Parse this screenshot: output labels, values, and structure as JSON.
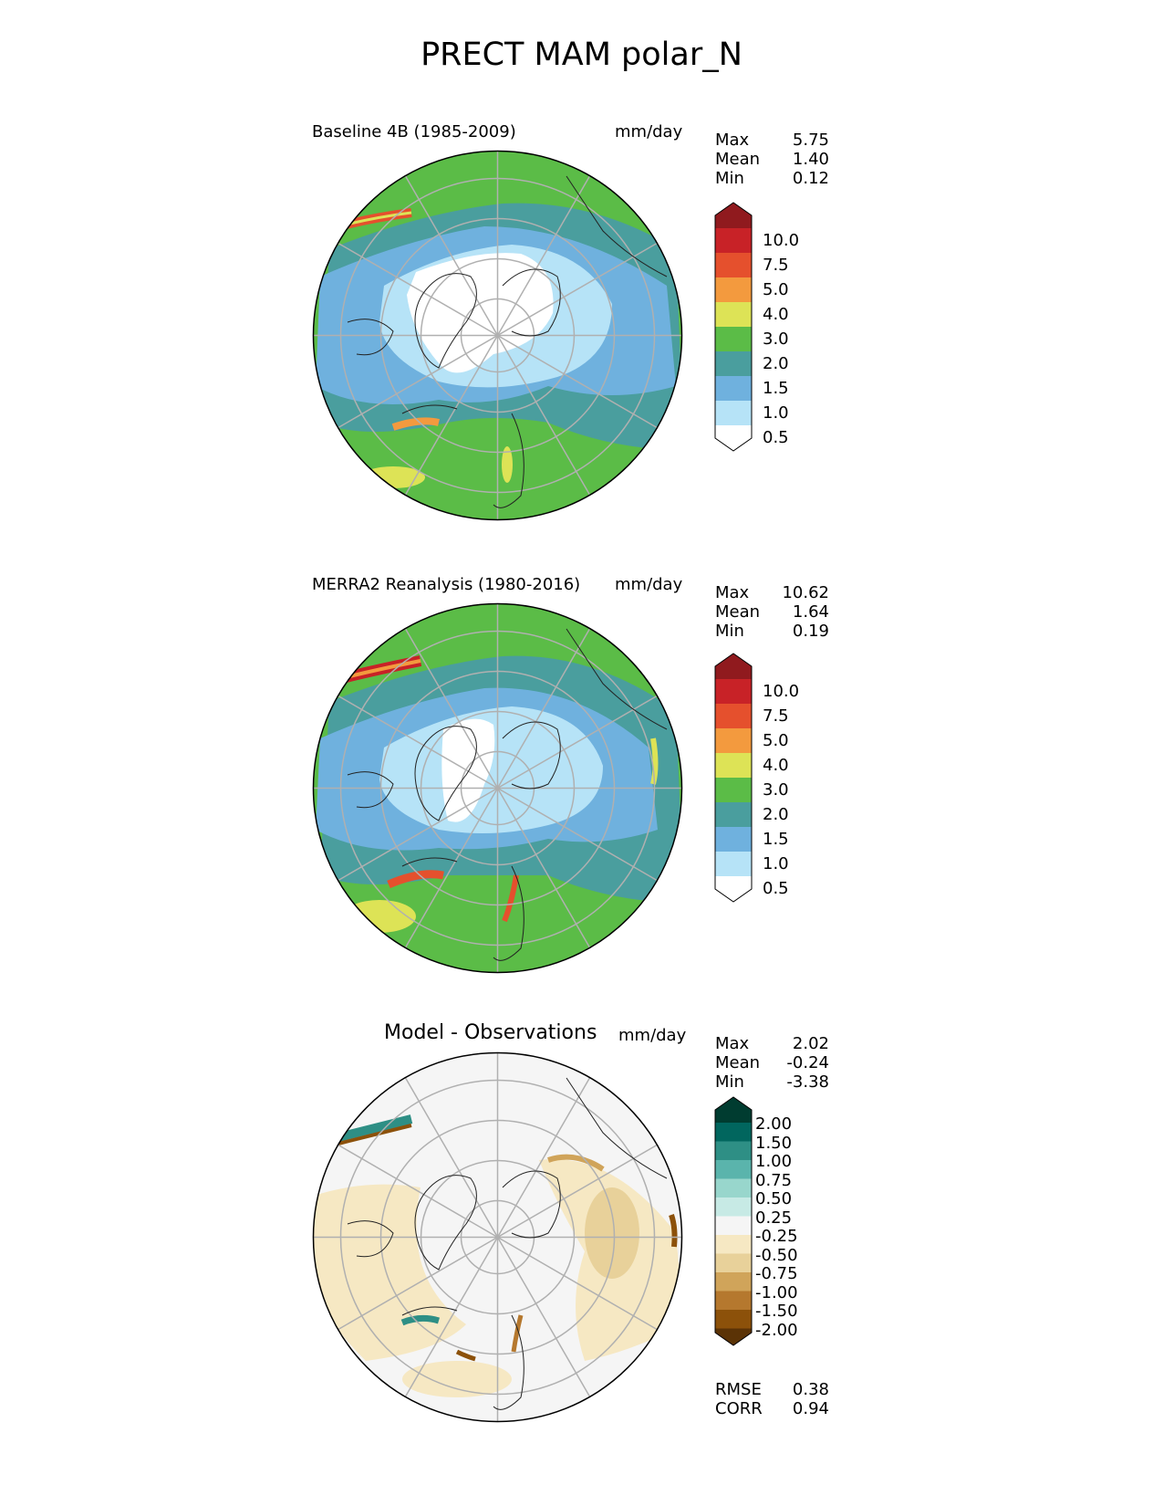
{
  "title": "PRECT MAM polar_N",
  "panels": [
    {
      "title": "Baseline 4B (1985-2009)",
      "units": "mm/day",
      "stats": [
        [
          "Max",
          "5.75"
        ],
        [
          "Mean",
          "1.40"
        ],
        [
          "Min",
          "0.12"
        ]
      ],
      "colorbar": {
        "levels": [
          "0.5",
          "1.0",
          "1.5",
          "2.0",
          "3.0",
          "4.0",
          "5.0",
          "7.5",
          "10.0"
        ],
        "colors": [
          "#ffffff",
          "#b6e3f7",
          "#6fb1de",
          "#4a9e9e",
          "#5bbc47",
          "#dde356",
          "#f39a3e",
          "#e5502d",
          "#c82227",
          "#901a1e"
        ]
      }
    },
    {
      "title": "MERRA2 Reanalysis (1980-2016)",
      "units": "mm/day",
      "stats": [
        [
          "Max",
          "10.62"
        ],
        [
          "Mean",
          "1.64"
        ],
        [
          "Min",
          "0.19"
        ]
      ],
      "colorbar": {
        "levels": [
          "0.5",
          "1.0",
          "1.5",
          "2.0",
          "3.0",
          "4.0",
          "5.0",
          "7.5",
          "10.0"
        ],
        "colors": [
          "#ffffff",
          "#b6e3f7",
          "#6fb1de",
          "#4a9e9e",
          "#5bbc47",
          "#dde356",
          "#f39a3e",
          "#e5502d",
          "#c82227",
          "#901a1e"
        ]
      }
    },
    {
      "title": "Model - Observations",
      "units": "mm/day",
      "stats": [
        [
          "Max",
          "2.02"
        ],
        [
          "Mean",
          "-0.24"
        ],
        [
          "Min",
          "-3.38"
        ]
      ],
      "extra_stats": [
        [
          "RMSE",
          "0.38"
        ],
        [
          "CORR",
          "0.94"
        ]
      ],
      "colorbar": {
        "levels": [
          "2.00",
          "1.50",
          "1.00",
          "0.75",
          "0.50",
          "0.25",
          "-0.25",
          "-0.50",
          "-0.75",
          "-1.00",
          "-1.50",
          "-2.00"
        ],
        "colors": [
          "#003c30",
          "#01665e",
          "#2e8f85",
          "#5ab4ac",
          "#98d6cc",
          "#c7eae5",
          "#f5f5f5",
          "#f6e8c3",
          "#e8d19a",
          "#d0a45a",
          "#b5782e",
          "#8c510a",
          "#5b3306"
        ]
      }
    }
  ],
  "map_colors": {
    "white": "#ffffff",
    "light_blue": "#b6e3f7",
    "blue": "#6fb1de",
    "teal": "#4a9e9e",
    "green": "#5bbc47",
    "yellow": "#dde356",
    "orange": "#f39a3e",
    "red": "#e5502d",
    "dark_red": "#c82227",
    "diff_neutral": "#f5f5f5",
    "diff_tan": "#f6e8c3",
    "diff_brown": "#b5782e",
    "diff_teal": "#2e8f85"
  }
}
